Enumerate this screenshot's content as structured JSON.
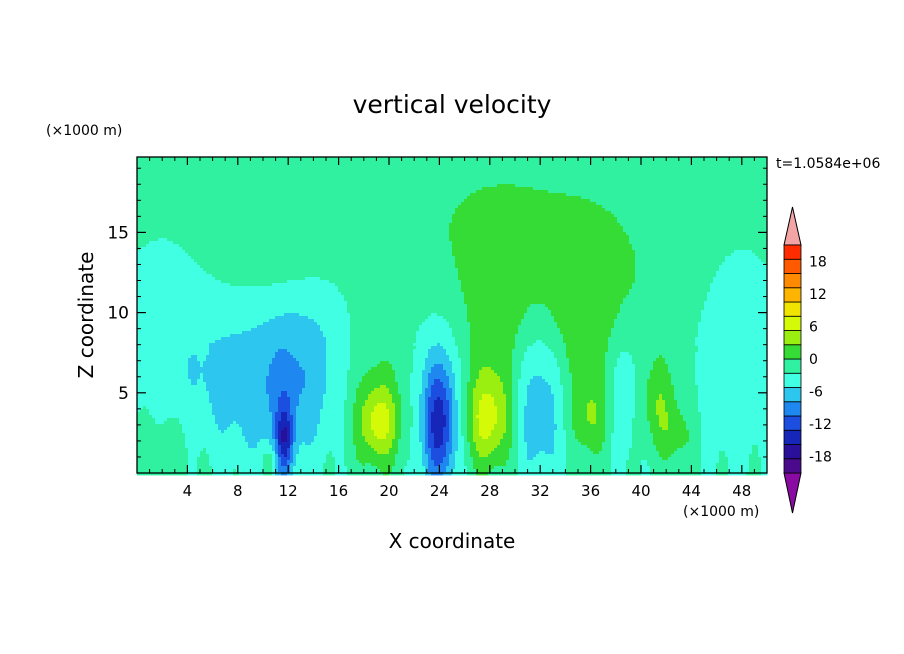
{
  "chart_data": {
    "type": "heatmap",
    "title": "vertical velocity",
    "xlabel": "X coordinate",
    "ylabel": "Z coordinate",
    "x_unit": "(×1000 m)",
    "y_unit": "(×1000 m)",
    "time_label": "t=1.0584e+06",
    "xlim": [
      0,
      50
    ],
    "ylim": [
      0,
      19.7
    ],
    "x_ticks": [
      4,
      8,
      12,
      16,
      20,
      24,
      28,
      32,
      36,
      40,
      44,
      48
    ],
    "y_ticks": [
      5,
      10,
      15
    ],
    "colorbar": {
      "min": -21,
      "max": 21,
      "step": 3,
      "tick_labels": [
        18,
        12,
        6,
        0,
        -6,
        -12,
        -18
      ],
      "extend": "both",
      "colors": [
        "#4b0a8c",
        "#2a0f9b",
        "#1626b8",
        "#1c4ee0",
        "#1f88f0",
        "#2cc6ee",
        "#40ffe2",
        "#2ff1a0",
        "#35dc35",
        "#9aee10",
        "#d4fa08",
        "#f0e400",
        "#ffb400",
        "#ff8a00",
        "#ff5a00",
        "#ff2c00"
      ],
      "over_color": "#f3a4a4",
      "under_color": "#8a0aa4"
    },
    "background_value": 0.5,
    "features": [
      {
        "type": "updraft",
        "x": 19.2,
        "z": 3.1,
        "sx": 1.1,
        "sz": 1.7,
        "amp": 8.2
      },
      {
        "type": "updraft",
        "x": 19.2,
        "z": 4.6,
        "sx": 2.4,
        "sz": 3.1,
        "amp": 2.7
      },
      {
        "type": "updraft",
        "x": 27.8,
        "z": 3.3,
        "sx": 1.3,
        "sz": 2.0,
        "amp": 8.0
      },
      {
        "type": "updraft",
        "x": 28.3,
        "z": 6.5,
        "sx": 2.3,
        "sz": 4.4,
        "amp": 3.6
      },
      {
        "type": "updraft",
        "x": 36.5,
        "z": 8.0,
        "sx": 2.4,
        "sz": 4.3,
        "amp": 3.6
      },
      {
        "type": "updraft",
        "x": 36.0,
        "z": 3.4,
        "sx": 1.0,
        "sz": 1.6,
        "amp": 4.5
      },
      {
        "type": "updraft",
        "x": 41.3,
        "z": 4.4,
        "sx": 1.1,
        "sz": 1.9,
        "amp": 5.0
      },
      {
        "type": "updraft",
        "x": 42.8,
        "z": 2.3,
        "sx": 1.0,
        "sz": 1.3,
        "amp": 3.5
      },
      {
        "type": "updraft",
        "x": 10.6,
        "z": 0.8,
        "sx": 0.5,
        "sz": 0.6,
        "amp": 3.5
      },
      {
        "type": "downdraft",
        "x": 24.0,
        "z": 3.0,
        "sx": 0.9,
        "sz": 2.7,
        "amp": -11.5
      },
      {
        "type": "downdraft",
        "x": 24.0,
        "z": 4.8,
        "sx": 1.9,
        "sz": 3.9,
        "amp": -4.2
      },
      {
        "type": "downdraft",
        "x": 31.8,
        "z": 4.3,
        "sx": 1.5,
        "sz": 3.6,
        "amp": -7.0
      },
      {
        "type": "downdraft",
        "x": 38.6,
        "z": 5.8,
        "sx": 1.3,
        "sz": 3.5,
        "amp": -4.8
      },
      {
        "type": "downdraft",
        "x": 11.7,
        "z": 2.0,
        "sx": 0.5,
        "sz": 1.6,
        "amp": -11.0
      },
      {
        "type": "downdraft",
        "x": 11.5,
        "z": 5.4,
        "sx": 1.9,
        "sz": 3.5,
        "amp": -5.8
      },
      {
        "type": "downdraft",
        "x": 7.5,
        "z": 5.6,
        "sx": 2.1,
        "sz": 3.2,
        "amp": -4.2
      },
      {
        "type": "downdraft",
        "x": 14.5,
        "z": 6.6,
        "sx": 2.0,
        "sz": 3.6,
        "amp": -3.6
      },
      {
        "type": "downdraft",
        "x": 2.5,
        "z": 7.5,
        "sx": 2.6,
        "sz": 4.0,
        "amp": -2.7
      },
      {
        "type": "downdraft",
        "x": 47.5,
        "z": 7.0,
        "sx": 2.2,
        "sz": 4.2,
        "amp": -3.2
      },
      {
        "type": "updraft",
        "x": 29.0,
        "z": 15.5,
        "sx": 8.0,
        "sz": 4.5,
        "amp": 2.6
      },
      {
        "type": "updraft",
        "x": 35.5,
        "z": 11.0,
        "sx": 6.0,
        "sz": 3.5,
        "amp": 1.8
      },
      {
        "type": "updraft",
        "x": 10.5,
        "z": 14.2,
        "sx": 3.0,
        "sz": 1.6,
        "amp": 2.6
      },
      {
        "type": "updraft",
        "x": 2.0,
        "z": 1.5,
        "sx": 1.8,
        "sz": 1.7,
        "amp": 2.2
      }
    ]
  }
}
